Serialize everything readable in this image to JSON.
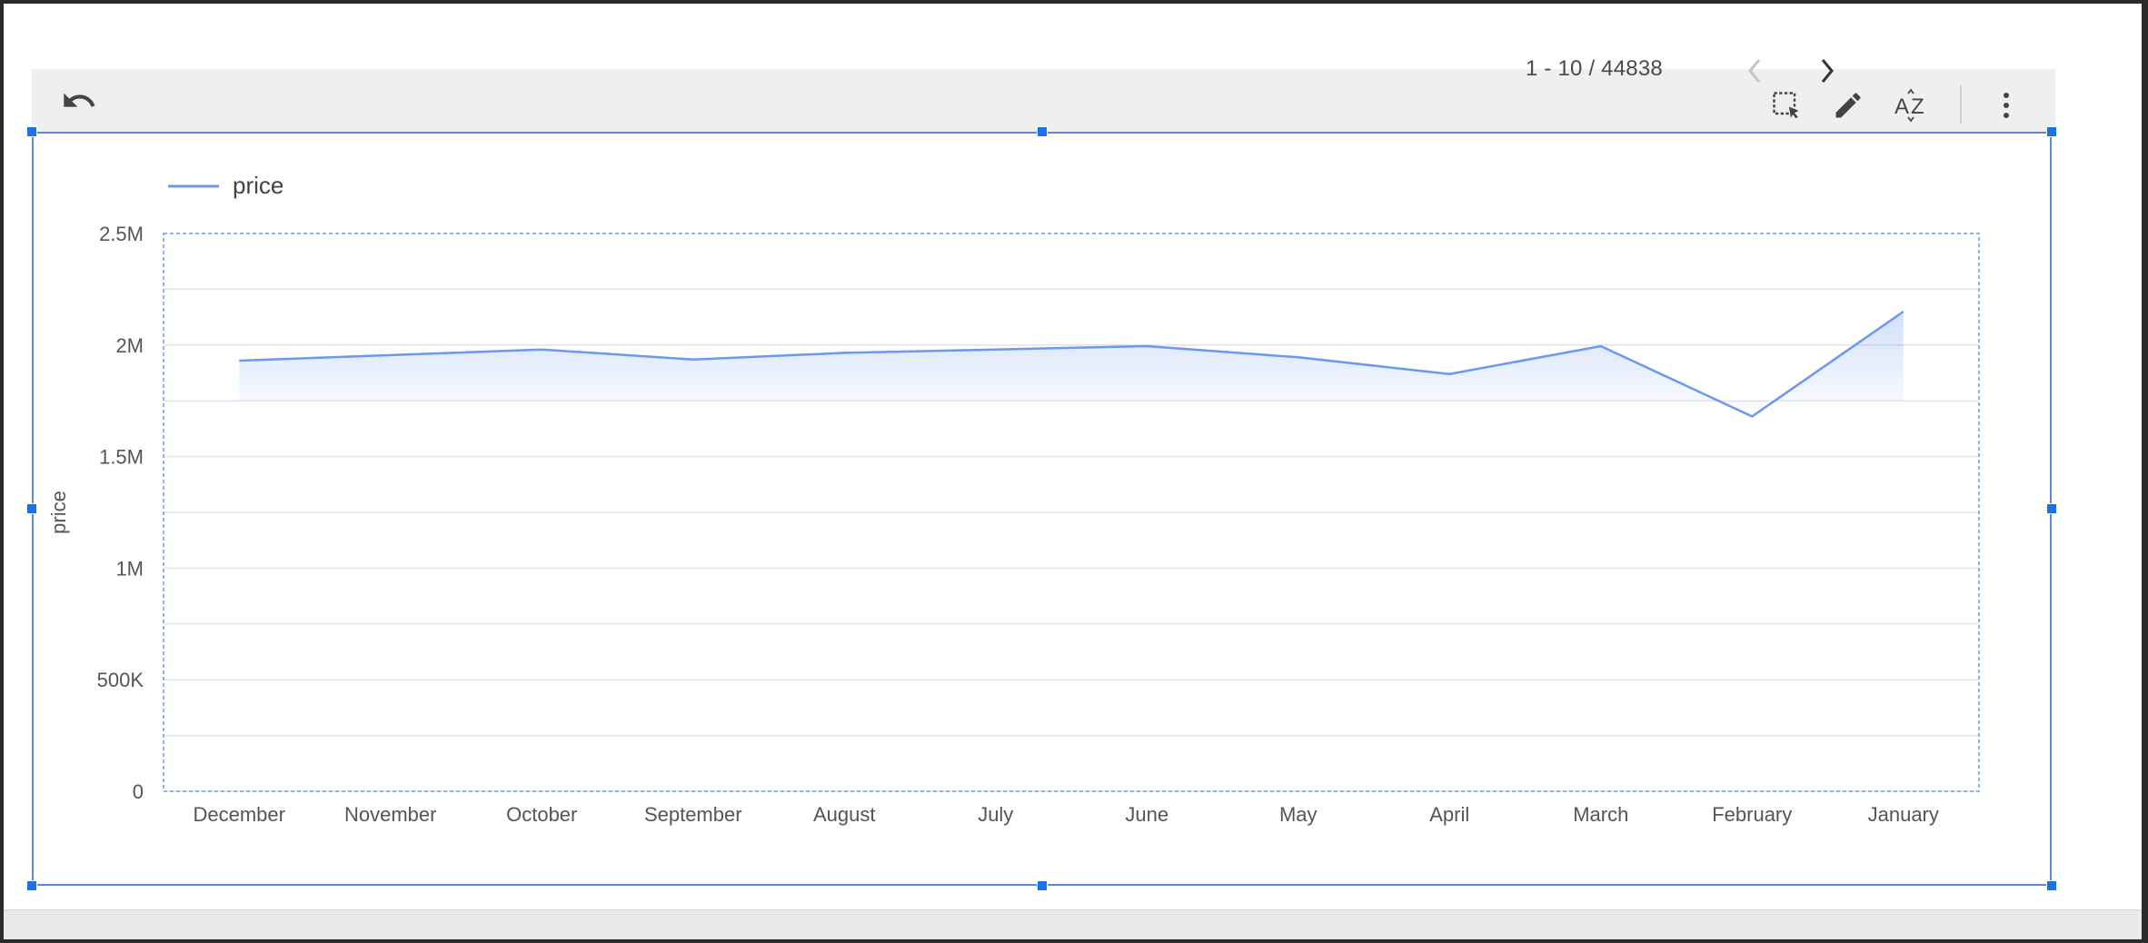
{
  "pager": {
    "range_text": "1 - 10 / 44838",
    "prev_icon": "chevron-left-icon",
    "next_icon": "chevron-right-icon"
  },
  "toolbar": {
    "icons": [
      "undo-icon",
      "select-area-icon",
      "edit-pencil-icon",
      "sort-az-icon",
      "more-vert-icon"
    ]
  },
  "colors": {
    "series": "#6b98f0",
    "selection": "#5b86e5",
    "handle": "#1a73e8",
    "grid": "#e3e3e3",
    "plot_border": "#8fb0f0"
  },
  "chart_data": {
    "type": "line",
    "title": "",
    "xlabel": "",
    "ylabel": "price",
    "legend": {
      "position": "top-left",
      "entries": [
        "price"
      ]
    },
    "grid": true,
    "categories": [
      "December",
      "November",
      "October",
      "September",
      "August",
      "July",
      "June",
      "May",
      "April",
      "March",
      "February",
      "January"
    ],
    "series": [
      {
        "name": "price",
        "values": [
          1930000,
          1955000,
          1980000,
          1935000,
          1965000,
          1980000,
          1995000,
          1945000,
          1870000,
          1995000,
          1680000,
          2150000
        ]
      }
    ],
    "ylim": [
      0,
      2500000
    ],
    "yticks": [
      0,
      500000,
      1000000,
      1500000,
      2000000,
      2500000
    ],
    "yticklabels": [
      "0",
      "500K",
      "1M",
      "1.5M",
      "2M",
      "2.5M"
    ]
  }
}
